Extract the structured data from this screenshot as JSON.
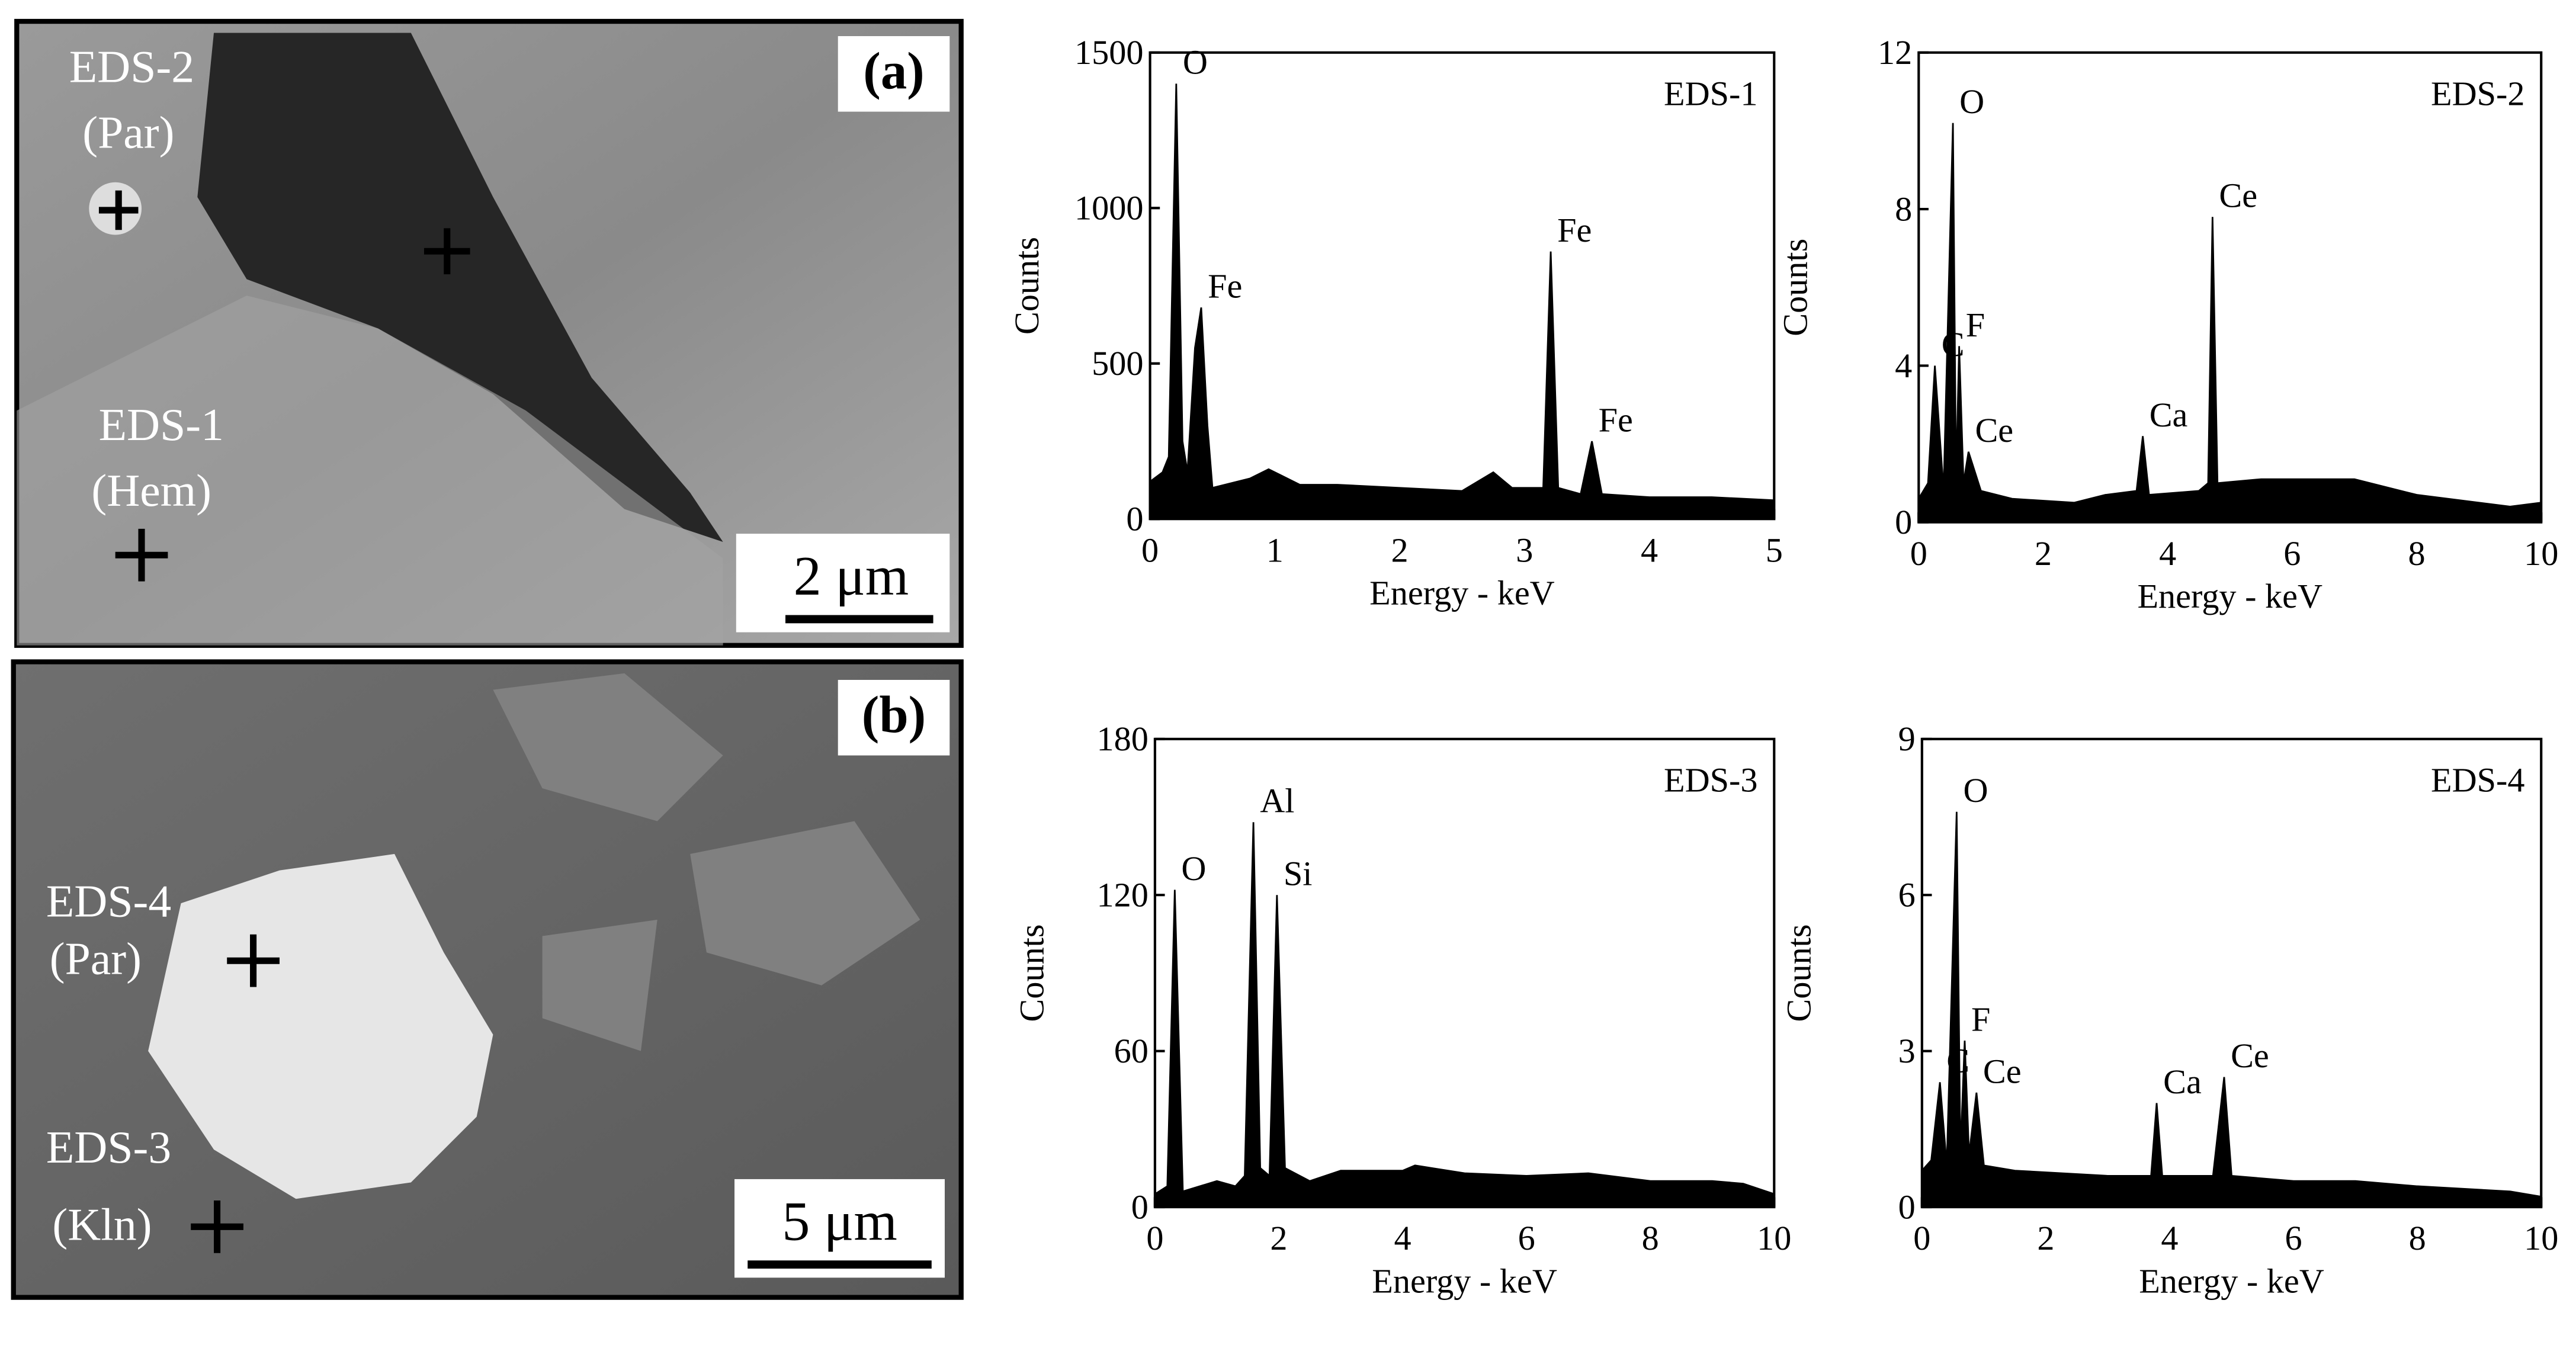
{
  "images": [
    {
      "panel": "(a)",
      "scale_bar": "2 μm",
      "labels": [
        "EDS-2",
        "(Par)",
        "EDS-1",
        "(Hem)"
      ]
    },
    {
      "panel": "(b)",
      "scale_bar": "5 μm",
      "labels": [
        "EDS-4",
        "(Par)",
        "EDS-3",
        "(Kln)"
      ]
    }
  ],
  "chart_data": [
    {
      "type": "area",
      "title": "EDS-1",
      "xlabel": "Energy - keV",
      "ylabel": "Counts",
      "color": "#000000",
      "xlim": [
        0,
        5
      ],
      "ylim": [
        0,
        1500
      ],
      "xticks": [
        0,
        1,
        2,
        3,
        4,
        5
      ],
      "yticks": [
        0,
        500,
        1000,
        1500
      ],
      "x": [
        0,
        0.1,
        0.15,
        0.21,
        0.26,
        0.3,
        0.36,
        0.41,
        0.46,
        0.5,
        0.8,
        0.95,
        1.2,
        1.5,
        2,
        2.5,
        2.75,
        2.9,
        3.15,
        3.21,
        3.27,
        3.45,
        3.54,
        3.62,
        4,
        4.5,
        5
      ],
      "values": [
        120,
        150,
        200,
        1400,
        250,
        150,
        550,
        680,
        300,
        100,
        130,
        160,
        110,
        110,
        100,
        90,
        150,
        100,
        100,
        860,
        100,
        80,
        250,
        80,
        70,
        70,
        60
      ],
      "annotations": [
        {
          "text": "O",
          "x": 0.21,
          "y": 1400
        },
        {
          "text": "Fe",
          "x": 0.41,
          "y": 680
        },
        {
          "text": "Fe",
          "x": 3.21,
          "y": 860
        },
        {
          "text": "Fe",
          "x": 3.54,
          "y": 250
        }
      ]
    },
    {
      "type": "area",
      "title": "EDS-2",
      "xlabel": "Energy - keV",
      "ylabel": "Counts",
      "color": "#000000",
      "xlim": [
        0,
        10
      ],
      "ylim": [
        0,
        12
      ],
      "xticks": [
        0,
        2,
        4,
        6,
        8,
        10
      ],
      "yticks": [
        0,
        4,
        8,
        12
      ],
      "x": [
        0,
        0.15,
        0.26,
        0.4,
        0.55,
        0.6,
        0.65,
        0.72,
        0.8,
        1.0,
        1.5,
        2.5,
        3.0,
        3.5,
        3.6,
        3.7,
        4.5,
        4.65,
        4.72,
        4.8,
        5.5,
        7,
        8,
        9.5,
        10
      ],
      "values": [
        0.6,
        1.0,
        4.0,
        0.8,
        10.2,
        1.0,
        4.5,
        1.0,
        1.8,
        0.8,
        0.6,
        0.5,
        0.7,
        0.8,
        2.2,
        0.7,
        0.8,
        1.0,
        7.8,
        1.0,
        1.1,
        1.1,
        0.7,
        0.4,
        0.5
      ],
      "annotations": [
        {
          "text": "C",
          "x": 0.26,
          "y": 4.0
        },
        {
          "text": "O",
          "x": 0.55,
          "y": 10.2
        },
        {
          "text": "F",
          "x": 0.65,
          "y": 4.5
        },
        {
          "text": "Ce",
          "x": 0.8,
          "y": 1.8
        },
        {
          "text": "Ca",
          "x": 3.6,
          "y": 2.2
        },
        {
          "text": "Ce",
          "x": 4.72,
          "y": 7.8
        }
      ]
    },
    {
      "type": "area",
      "title": "EDS-3",
      "xlabel": "Energy - keV",
      "ylabel": "Counts",
      "color": "#000000",
      "xlim": [
        0,
        10
      ],
      "ylim": [
        0,
        180
      ],
      "xticks": [
        0,
        2,
        4,
        6,
        8,
        10
      ],
      "yticks": [
        0,
        60,
        120,
        180
      ],
      "x": [
        0,
        0.2,
        0.32,
        0.45,
        1.0,
        1.3,
        1.45,
        1.59,
        1.7,
        1.85,
        1.97,
        2.1,
        2.5,
        3.0,
        4.0,
        4.2,
        5,
        6,
        7,
        8,
        9,
        9.5,
        10
      ],
      "values": [
        5,
        8,
        122,
        6,
        10,
        8,
        12,
        148,
        15,
        12,
        120,
        15,
        10,
        14,
        14,
        16,
        13,
        12,
        13,
        10,
        10,
        9,
        5
      ],
      "annotations": [
        {
          "text": "O",
          "x": 0.32,
          "y": 122
        },
        {
          "text": "Al",
          "x": 1.59,
          "y": 148
        },
        {
          "text": "Si",
          "x": 1.97,
          "y": 120
        }
      ]
    },
    {
      "type": "area",
      "title": "EDS-4",
      "xlabel": "Energy - keV",
      "ylabel": "Counts",
      "color": "#000000",
      "xlim": [
        0,
        10
      ],
      "ylim": [
        0,
        9
      ],
      "xticks": [
        0,
        2,
        4,
        6,
        8,
        10
      ],
      "yticks": [
        0,
        3,
        6,
        9
      ],
      "x": [
        0,
        0.15,
        0.29,
        0.4,
        0.56,
        0.62,
        0.69,
        0.76,
        0.88,
        1.0,
        1.5,
        3.0,
        3.7,
        3.79,
        3.88,
        4.7,
        4.88,
        5.0,
        6,
        7,
        8,
        9.5,
        10
      ],
      "values": [
        0.7,
        0.9,
        2.4,
        0.8,
        7.6,
        1.0,
        3.2,
        1.0,
        2.2,
        0.8,
        0.7,
        0.6,
        0.6,
        2.0,
        0.6,
        0.6,
        2.5,
        0.6,
        0.5,
        0.5,
        0.4,
        0.3,
        0.2
      ],
      "annotations": [
        {
          "text": "C",
          "x": 0.29,
          "y": 2.4
        },
        {
          "text": "O",
          "x": 0.56,
          "y": 7.6
        },
        {
          "text": "F",
          "x": 0.69,
          "y": 3.2
        },
        {
          "text": "Ce",
          "x": 0.88,
          "y": 2.2
        },
        {
          "text": "Ca",
          "x": 3.79,
          "y": 2.0
        },
        {
          "text": "Ce",
          "x": 4.88,
          "y": 2.5
        }
      ]
    }
  ]
}
